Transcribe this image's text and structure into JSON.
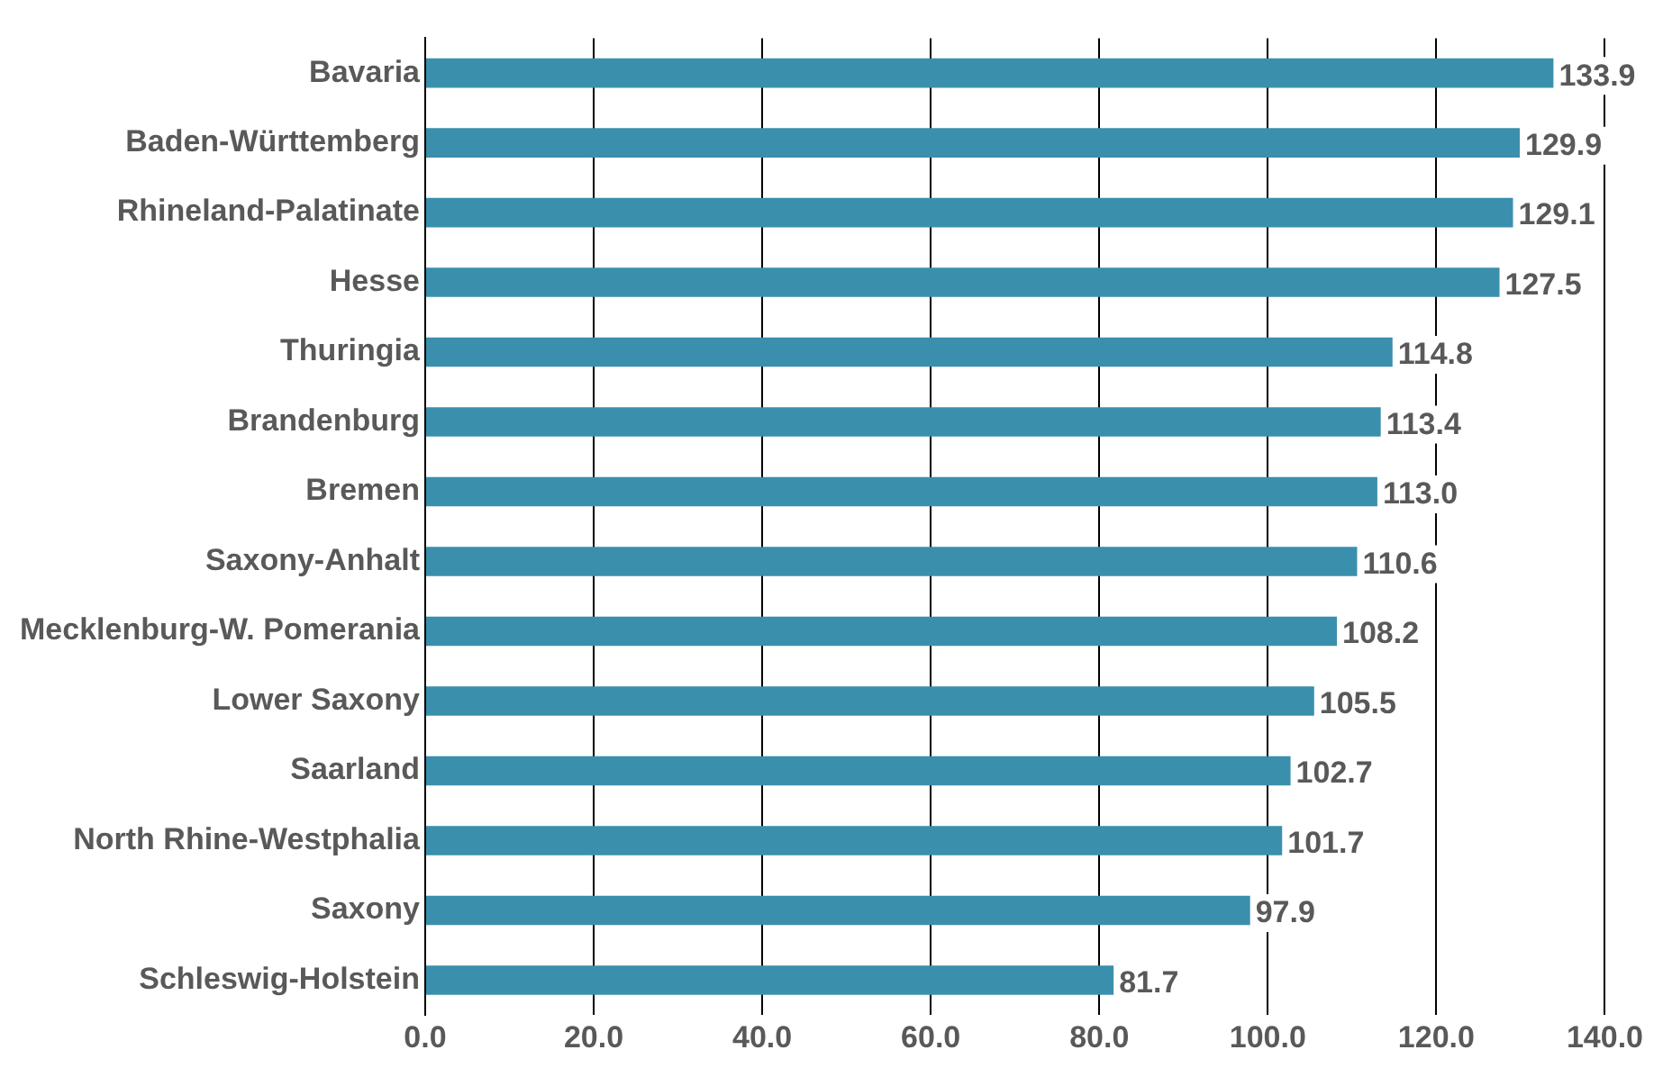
{
  "chart_data": {
    "type": "bar",
    "orientation": "horizontal",
    "categories": [
      "Bavaria",
      "Baden-Württemberg",
      "Rhineland-Palatinate",
      "Hesse",
      "Thuringia",
      "Brandenburg",
      "Bremen",
      "Saxony-Anhalt",
      "Mecklenburg-W. Pomerania",
      "Lower Saxony",
      "Saarland",
      "North Rhine-Westphalia",
      "Saxony",
      "Schleswig-Holstein"
    ],
    "values": [
      133.9,
      129.9,
      129.1,
      127.5,
      114.8,
      113.4,
      113.0,
      110.6,
      108.2,
      105.5,
      102.7,
      101.7,
      97.9,
      81.7
    ],
    "value_labels": [
      "133.9",
      "129.9",
      "129.1",
      "127.5",
      "114.8",
      "113.4",
      "113.0",
      "110.6",
      "108.2",
      "105.5",
      "102.7",
      "101.7",
      "97.9",
      "81.7"
    ],
    "color": "#3a8fad",
    "xlim": [
      0,
      140
    ],
    "xticks": [
      {
        "value": 0,
        "label": "0.0"
      },
      {
        "value": 20,
        "label": "20.0"
      },
      {
        "value": 40,
        "label": "40.0"
      },
      {
        "value": 60,
        "label": "60.0"
      },
      {
        "value": 80,
        "label": "80.0"
      },
      {
        "value": 100,
        "label": "100.0"
      },
      {
        "value": 120,
        "label": "120.0"
      },
      {
        "value": 140,
        "label": "140.0"
      }
    ],
    "grid": "x",
    "legend": false
  }
}
